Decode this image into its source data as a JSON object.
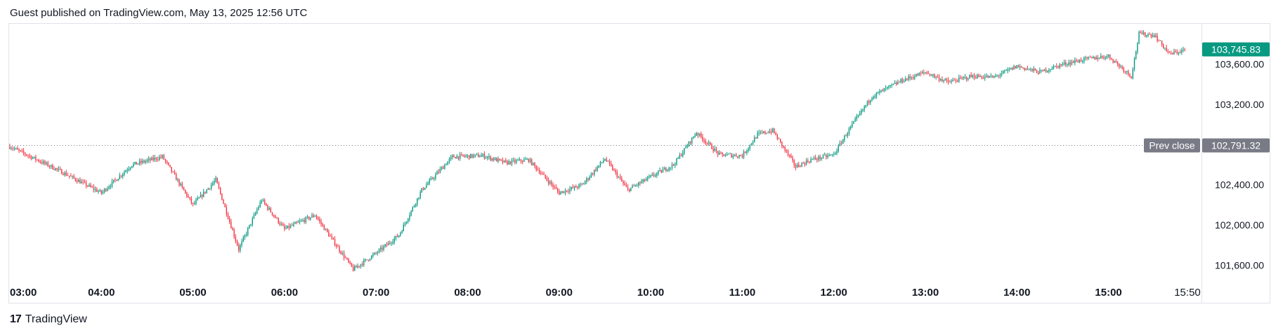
{
  "header": {
    "published_text": "Guest published on TradingView.com, May 13, 2025 12:56 UTC"
  },
  "footer": {
    "logo_mark": "17",
    "brand": "TradingView"
  },
  "colors": {
    "up": "#089981",
    "down": "#f23645",
    "last_price_bg": "#089981",
    "prev_close_bg": "#787b86",
    "axis_text": "#131722",
    "border": "#e0e3eb"
  },
  "chart_data": {
    "type": "candlestick",
    "x_ticks": [
      "03:00",
      "04:00",
      "05:00",
      "06:00",
      "07:00",
      "08:00",
      "09:00",
      "10:00",
      "11:00",
      "12:00",
      "13:00",
      "14:00",
      "15:00",
      "15:50"
    ],
    "y_ticks": [
      "103,600.00",
      "103,200.00",
      "102,400.00",
      "102,000.00",
      "101,600.00"
    ],
    "ylim": [
      101450,
      104000
    ],
    "last_price": {
      "value": 103745.83,
      "label": "103,745.83"
    },
    "prev_close": {
      "value": 102791.32,
      "label": "102,791.32",
      "tag": "Prev close"
    },
    "key_points": [
      [
        "03:00",
        102780
      ],
      [
        "03:30",
        102560
      ],
      [
        "04:00",
        102320
      ],
      [
        "04:20",
        102600
      ],
      [
        "04:40",
        102680
      ],
      [
        "05:00",
        102200
      ],
      [
        "05:15",
        102450
      ],
      [
        "05:30",
        101760
      ],
      [
        "05:45",
        102250
      ],
      [
        "06:00",
        101960
      ],
      [
        "06:20",
        102100
      ],
      [
        "06:45",
        101560
      ],
      [
        "07:00",
        101720
      ],
      [
        "07:15",
        101900
      ],
      [
        "07:30",
        102350
      ],
      [
        "07:50",
        102680
      ],
      [
        "08:10",
        102690
      ],
      [
        "08:25",
        102620
      ],
      [
        "08:40",
        102650
      ],
      [
        "09:00",
        102320
      ],
      [
        "09:15",
        102400
      ],
      [
        "09:30",
        102660
      ],
      [
        "09:45",
        102350
      ],
      [
        "10:00",
        102480
      ],
      [
        "10:15",
        102600
      ],
      [
        "10:30",
        102920
      ],
      [
        "10:45",
        102700
      ],
      [
        "11:00",
        102690
      ],
      [
        "11:10",
        102900
      ],
      [
        "11:20",
        102940
      ],
      [
        "11:35",
        102580
      ],
      [
        "11:45",
        102650
      ],
      [
        "12:00",
        102700
      ],
      [
        "12:10",
        102950
      ],
      [
        "12:25",
        103280
      ],
      [
        "12:45",
        103440
      ],
      [
        "13:00",
        103520
      ],
      [
        "13:15",
        103420
      ],
      [
        "13:30",
        103480
      ],
      [
        "13:45",
        103470
      ],
      [
        "14:00",
        103580
      ],
      [
        "14:15",
        103520
      ],
      [
        "14:30",
        103600
      ],
      [
        "14:45",
        103650
      ],
      [
        "15:00",
        103680
      ],
      [
        "15:15",
        103480
      ],
      [
        "15:20",
        103900
      ],
      [
        "15:30",
        103890
      ],
      [
        "15:40",
        103700
      ],
      [
        "15:50",
        103740
      ]
    ]
  }
}
